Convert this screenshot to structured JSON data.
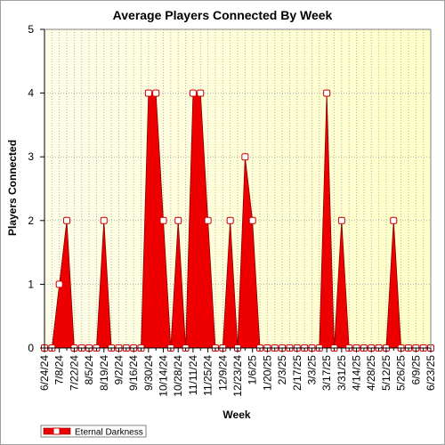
{
  "chart_data": {
    "type": "area",
    "title": "Average Players Connected By Week",
    "xlabel": "Week",
    "ylabel": "Players Connected",
    "ylim": [
      0,
      5
    ],
    "yticks": [
      0,
      1,
      2,
      3,
      4,
      5
    ],
    "grid": true,
    "legend_position": "bottom-left",
    "x": [
      "6/24/24",
      "7/1/24",
      "7/8/24",
      "7/15/24",
      "7/22/24",
      "7/29/24",
      "8/5/24",
      "8/12/24",
      "8/19/24",
      "8/26/24",
      "9/2/24",
      "9/9/24",
      "9/16/24",
      "9/23/24",
      "9/30/24",
      "10/7/24",
      "10/14/24",
      "10/21/24",
      "10/28/24",
      "11/4/24",
      "11/11/24",
      "11/18/24",
      "11/25/24",
      "12/2/24",
      "12/9/24",
      "12/16/24",
      "12/23/24",
      "12/30/24",
      "1/6/25",
      "1/13/25",
      "1/20/25",
      "1/27/25",
      "2/3/25",
      "2/10/25",
      "2/17/25",
      "2/24/25",
      "3/3/25",
      "3/10/25",
      "3/17/25",
      "3/24/25",
      "3/31/25",
      "4/7/25",
      "4/14/25",
      "4/21/25",
      "4/28/25",
      "5/5/25",
      "5/12/25",
      "5/19/25",
      "5/26/25",
      "6/2/25",
      "6/9/25",
      "6/16/25",
      "6/23/25"
    ],
    "xtick_labels": [
      "6/24/24",
      "7/8/24",
      "7/22/24",
      "8/5/24",
      "8/19/24",
      "9/2/24",
      "9/16/24",
      "9/30/24",
      "10/14/24",
      "10/28/24",
      "11/11/24",
      "11/25/24",
      "12/9/24",
      "12/23/24",
      "1/6/25",
      "1/20/25",
      "2/3/25",
      "2/17/25",
      "3/3/25",
      "3/17/25",
      "3/31/25",
      "4/14/25",
      "4/28/25",
      "5/12/25",
      "5/26/25",
      "6/9/25",
      "6/23/25"
    ],
    "series": [
      {
        "name": "Eternal Darkness",
        "color": "#ee0000",
        "values": [
          0,
          0,
          1,
          2,
          0,
          0,
          0,
          0,
          2,
          0,
          0,
          0,
          0,
          0,
          4,
          4,
          2,
          0,
          2,
          0,
          4,
          4,
          2,
          0,
          0,
          2,
          0,
          3,
          2,
          0,
          0,
          0,
          0,
          0,
          0,
          0,
          0,
          0,
          4,
          0,
          2,
          0,
          0,
          0,
          0,
          0,
          0,
          2,
          0,
          0,
          0,
          0,
          0
        ]
      }
    ]
  },
  "colors": {
    "area_fill": "#ee0000",
    "area_edge": "#880000",
    "marker_fill": "#ffffff",
    "marker_edge": "#cc0000",
    "plot_bg_left": "#fcfce0",
    "plot_bg_right": "#ffffcc",
    "grid": "#b0b0b0"
  }
}
